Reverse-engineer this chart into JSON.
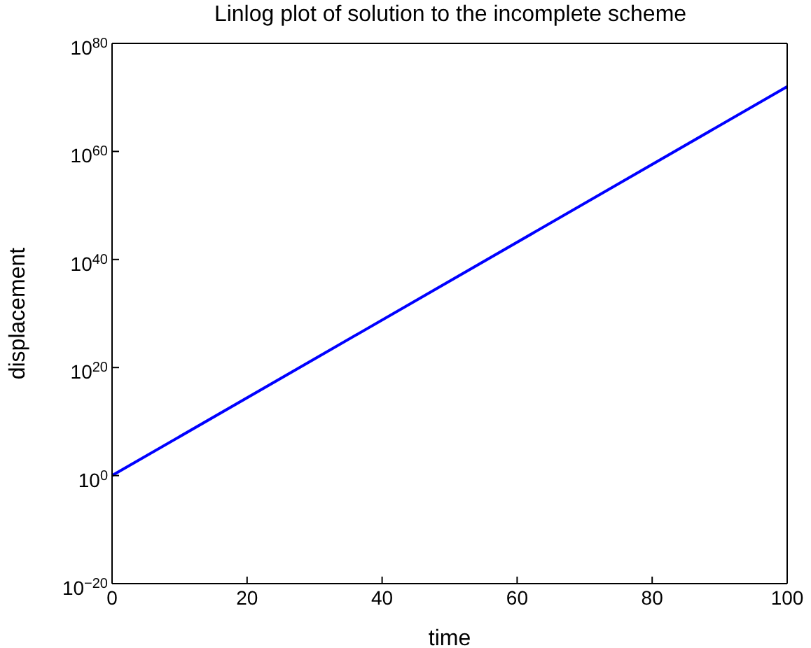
{
  "chart_data": {
    "type": "line",
    "title": "Linlog plot of solution to the incomplete scheme",
    "xlabel": "time",
    "ylabel": "displacement",
    "log": "y",
    "grid": false,
    "legend": false,
    "marker": "none",
    "line_style": "solid",
    "x": [
      0,
      100
    ],
    "series": [
      {
        "color": "#0000ff",
        "values": [
          1,
          1e+72
        ]
      }
    ],
    "xlim": [
      0,
      100
    ],
    "xticks": [
      0,
      20,
      40,
      60,
      80,
      100
    ],
    "ylim": [
      1e-20,
      1e+80
    ],
    "yticks": [
      {
        "value": 1e-20,
        "label": "10$^{−20}$"
      },
      {
        "value": 1,
        "label": "10$^{0}$"
      },
      {
        "value": 1e+20,
        "label": "10$^{20}$"
      },
      {
        "value": 1e+40,
        "label": "10$^{40}$"
      },
      {
        "value": 1e+60,
        "label": "10$^{60}$"
      },
      {
        "value": 1e+80,
        "label": "10$^{80}$"
      }
    ]
  }
}
